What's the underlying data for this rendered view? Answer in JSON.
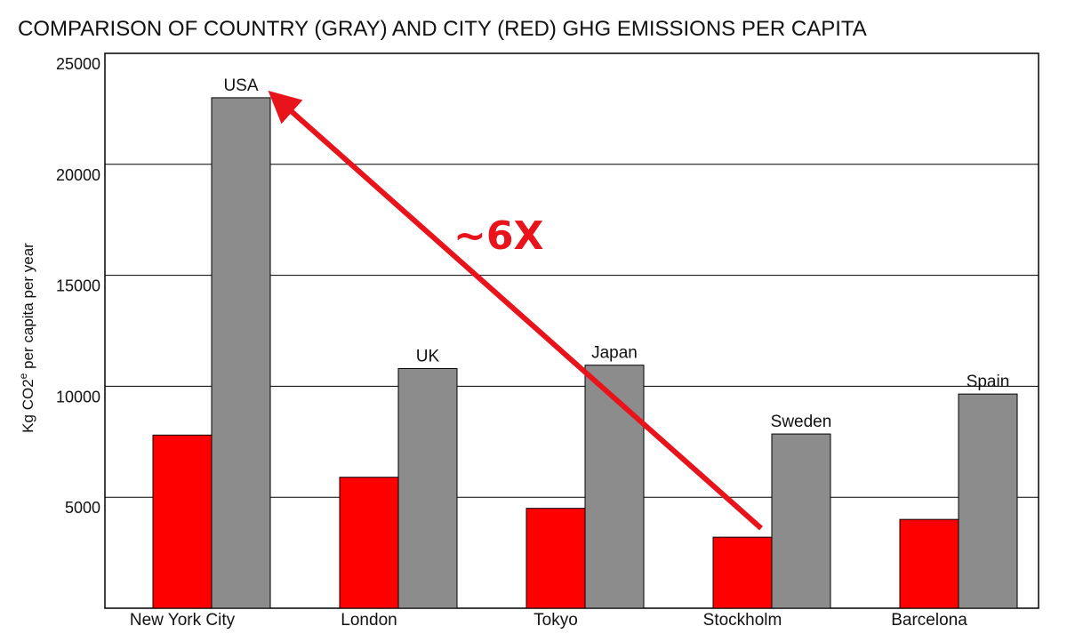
{
  "chart_data": {
    "type": "bar",
    "title": "COMPARISON OF COUNTRY (GRAY) AND CITY (RED) GHG EMISSIONS PER CAPITA",
    "ylabel_main": "Kg CO2",
    "ylabel_sup": "e",
    "ylabel_rest": " per capita per year",
    "xlabel": "",
    "ylim": [
      0,
      25000
    ],
    "yticks": [
      {
        "value": 5000,
        "label": "5000"
      },
      {
        "value": 10000,
        "label": "10000"
      },
      {
        "value": 15000,
        "label": "15000"
      },
      {
        "value": 20000,
        "label": "20000"
      },
      {
        "value": 25000,
        "label": "25000"
      }
    ],
    "categories": [
      "New York City",
      "London",
      "Tokyo",
      "Stockholm",
      "Barcelona"
    ],
    "series": [
      {
        "name": "City",
        "color": "#ff0000",
        "values": [
          7800,
          5900,
          4500,
          3200,
          4000
        ]
      },
      {
        "name": "Country",
        "color": "#8c8c8c",
        "values": [
          23000,
          10800,
          10950,
          7850,
          9650
        ],
        "labels": [
          "USA",
          "UK",
          "Japan",
          "Sweden",
          "Spain"
        ]
      }
    ],
    "annotation": {
      "text": "~6X",
      "color": "#e8131b",
      "from": {
        "category": "Stockholm",
        "value": 3200
      },
      "to": {
        "category": "New York City",
        "value": 23000
      }
    },
    "grid": true
  }
}
